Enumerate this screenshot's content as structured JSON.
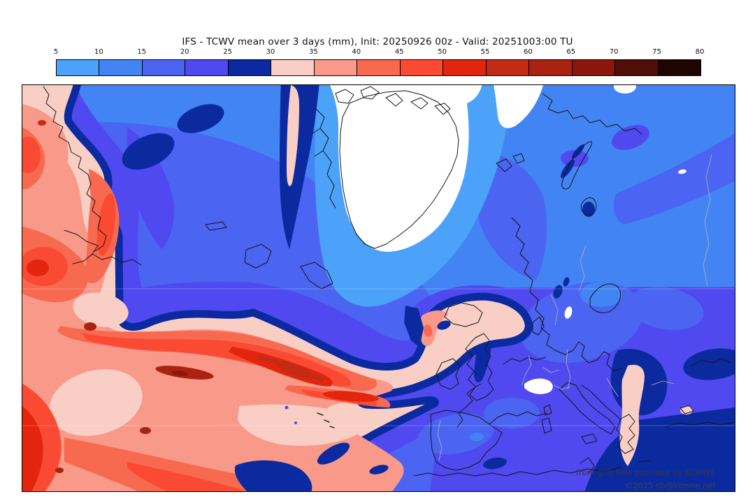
{
  "title": "IFS - TCWV mean over 3 days (mm), Init: 20250926 00z - Valid: 20251003:00 TU",
  "colorbar": {
    "tick_labels": [
      "5",
      "10",
      "15",
      "20",
      "25",
      "30",
      "35",
      "40",
      "45",
      "50",
      "55",
      "60",
      "65",
      "70",
      "75",
      "80"
    ],
    "segment_colors": [
      "#4BA2F8",
      "#4384F4",
      "#4B64F1",
      "#4F49EF",
      "#0B2AA0",
      "#F8CEC5",
      "#F8998A",
      "#F76A50",
      "#FB4A33",
      "#E3250E",
      "#C42B15",
      "#AA2211",
      "#8B170A",
      "#4F0E06",
      "#1E0502"
    ],
    "below_min_color": "#FFFFFF"
  },
  "map": {
    "coastline_color": "#151515",
    "border_color": "#b4b4b4",
    "graticule_color": "rgba(255,255,255,0.33)"
  },
  "watermark": {
    "line1": "from grib files provided by ECMWF",
    "line2": "©2025 sb@irizone.net"
  },
  "chart_data": {
    "type": "heatmap",
    "title": "IFS - TCWV mean over 3 days (mm), Init: 20250926 00z - Valid: 20251003:00 TU",
    "variable": "Total column water vapour, 3-day mean",
    "units": "mm",
    "model": "IFS",
    "init": "20250926 00z",
    "valid": "20251003:00 TU",
    "levels": [
      5,
      10,
      15,
      20,
      25,
      30,
      35,
      40,
      45,
      50,
      55,
      60,
      65,
      70,
      75,
      80
    ],
    "colors": [
      "#4BA2F8",
      "#4384F4",
      "#4B64F1",
      "#4F49EF",
      "#0B2AA0",
      "#F8CEC5",
      "#F8998A",
      "#F76A50",
      "#FB4A33",
      "#E3250E",
      "#C42B15",
      "#AA2211",
      "#8B170A",
      "#4F0E06",
      "#1E0502"
    ],
    "below_min_color": "#FFFFFF",
    "legend_position": "top",
    "notable_features": [
      {
        "region": "west-central North Atlantic plume with cyclonic spiral",
        "approx_value_mm": "40-60"
      },
      {
        "region": "dark-red filaments inside plume",
        "approx_value_mm": "60-70"
      },
      {
        "region": "moist band arcing toward Iceland and northern Scotland",
        "approx_value_mm": "30-40"
      },
      {
        "region": "Greenland and Arctic ice cap",
        "approx_value_mm": "<5"
      },
      {
        "region": "subpolar seas around Greenland",
        "approx_value_mm": "5-15"
      },
      {
        "region": "NE Atlantic and most of Europe",
        "approx_value_mm": "15-25"
      },
      {
        "region": "Adriatic and eastern Mediterranean",
        "approx_value_mm": "25-30"
      },
      {
        "region": "Greece / Aegean and Cyprus patches",
        "approx_value_mm": "30-35"
      },
      {
        "region": "Alps",
        "approx_value_mm": "<5"
      }
    ]
  }
}
